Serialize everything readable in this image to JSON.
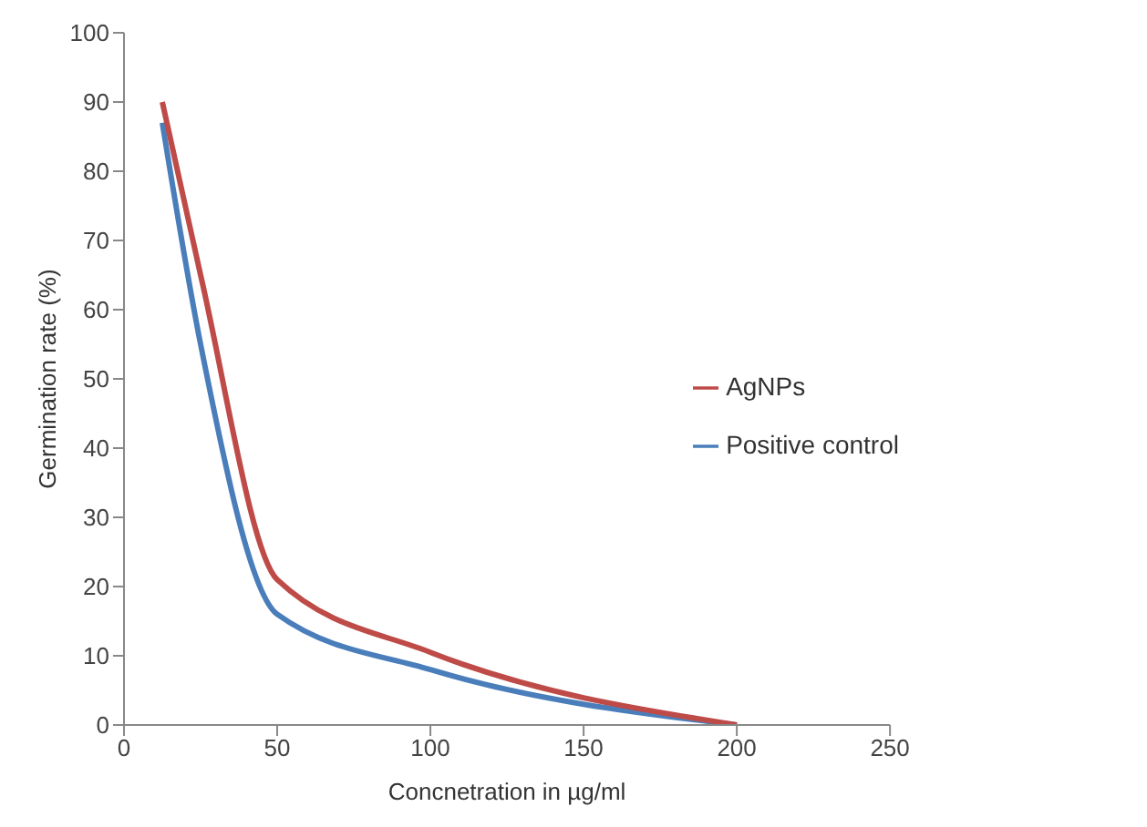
{
  "chart_data": {
    "type": "line",
    "xlabel": "Concnetration in µg/ml",
    "ylabel": "Germination rate (%)",
    "x": [
      12.5,
      25,
      50,
      100,
      200
    ],
    "series": [
      {
        "name": "Positive control",
        "color": "#4a7ebb",
        "values": [
          87,
          55,
          16,
          8,
          0
        ]
      },
      {
        "name": "AgNPs",
        "color": "#be4b48",
        "values": [
          90,
          65,
          21,
          10.5,
          0
        ]
      }
    ],
    "xlim": [
      0,
      250
    ],
    "xticks": [
      0,
      50,
      100,
      150,
      200,
      250
    ],
    "ylim": [
      0,
      100
    ],
    "yticks": [
      0,
      10,
      20,
      30,
      40,
      50,
      60,
      70,
      80,
      90,
      100
    ],
    "grid": false,
    "legend": "right",
    "marker": "none",
    "line_style": "solid"
  }
}
